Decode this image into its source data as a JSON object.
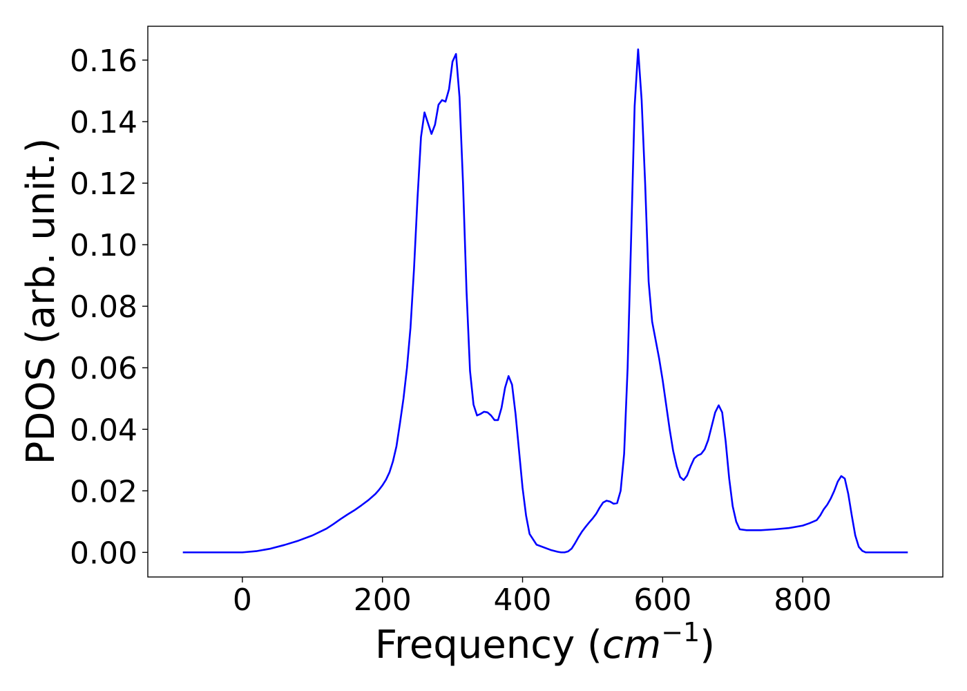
{
  "chart_data": {
    "type": "line",
    "title": "",
    "xlabel": "Frequency (cm⁻¹)",
    "xlabel_prefix": "Frequency (",
    "xlabel_unit": "cm",
    "xlabel_exponent": "−1",
    "xlabel_suffix": ")",
    "ylabel": "PDOS (arb. unit.)",
    "xlim": [
      -135,
      1000
    ],
    "ylim": [
      -0.008,
      0.171
    ],
    "x_ticks": [
      0,
      200,
      400,
      600,
      800
    ],
    "x_tick_labels": [
      "0",
      "200",
      "400",
      "600",
      "800"
    ],
    "y_ticks": [
      0.0,
      0.02,
      0.04,
      0.06,
      0.08,
      0.1,
      0.12,
      0.14,
      0.16
    ],
    "y_tick_labels": [
      "0.00",
      "0.02",
      "0.04",
      "0.06",
      "0.08",
      "0.10",
      "0.12",
      "0.14",
      "0.16"
    ],
    "grid": false,
    "legend": "none",
    "series": [
      {
        "color": "#0000ff",
        "x": [
          -85,
          -40,
          0,
          20,
          40,
          60,
          80,
          100,
          120,
          130,
          140,
          150,
          160,
          170,
          180,
          185,
          190,
          195,
          200,
          205,
          210,
          215,
          220,
          225,
          230,
          235,
          240,
          245,
          250,
          255,
          260,
          265,
          270,
          275,
          280,
          285,
          290,
          295,
          300,
          305,
          310,
          315,
          320,
          325,
          330,
          335,
          340,
          345,
          350,
          355,
          360,
          365,
          370,
          375,
          380,
          385,
          390,
          395,
          400,
          405,
          410,
          420,
          440,
          450,
          455,
          460,
          465,
          470,
          475,
          480,
          485,
          490,
          495,
          500,
          505,
          510,
          515,
          520,
          525,
          530,
          535,
          540,
          545,
          550,
          555,
          560,
          565,
          570,
          575,
          580,
          585,
          590,
          595,
          600,
          605,
          610,
          615,
          620,
          625,
          630,
          635,
          640,
          645,
          650,
          655,
          660,
          665,
          670,
          675,
          680,
          685,
          690,
          695,
          700,
          705,
          710,
          720,
          730,
          740,
          760,
          780,
          800,
          810,
          820,
          825,
          830,
          835,
          840,
          845,
          850,
          855,
          860,
          865,
          870,
          875,
          880,
          885,
          890,
          900,
          950
        ],
        "y": [
          0,
          0,
          0,
          0.0004,
          0.0012,
          0.0024,
          0.0038,
          0.0055,
          0.0077,
          0.0092,
          0.0108,
          0.0123,
          0.0137,
          0.0153,
          0.017,
          0.018,
          0.019,
          0.0203,
          0.0218,
          0.0236,
          0.026,
          0.0296,
          0.0345,
          0.042,
          0.05,
          0.06,
          0.073,
          0.092,
          0.115,
          0.135,
          0.143,
          0.1395,
          0.136,
          0.139,
          0.1455,
          0.147,
          0.1465,
          0.1505,
          0.1595,
          0.162,
          0.148,
          0.12,
          0.085,
          0.059,
          0.048,
          0.0445,
          0.045,
          0.0457,
          0.0455,
          0.0445,
          0.043,
          0.043,
          0.047,
          0.0535,
          0.0573,
          0.0545,
          0.045,
          0.033,
          0.021,
          0.012,
          0.006,
          0.0025,
          0.0008,
          0.0002,
          0,
          0,
          0.0003,
          0.0012,
          0.003,
          0.005,
          0.0068,
          0.0083,
          0.0097,
          0.011,
          0.0125,
          0.0145,
          0.0162,
          0.0168,
          0.0165,
          0.0158,
          0.016,
          0.02,
          0.032,
          0.06,
          0.102,
          0.145,
          0.1635,
          0.147,
          0.12,
          0.088,
          0.075,
          0.069,
          0.063,
          0.056,
          0.048,
          0.04,
          0.033,
          0.028,
          0.0245,
          0.0235,
          0.025,
          0.028,
          0.0305,
          0.0315,
          0.032,
          0.0335,
          0.0365,
          0.041,
          0.0455,
          0.0478,
          0.0455,
          0.036,
          0.024,
          0.015,
          0.01,
          0.0075,
          0.0072,
          0.0072,
          0.0072,
          0.0075,
          0.0079,
          0.0087,
          0.0095,
          0.0105,
          0.012,
          0.014,
          0.0155,
          0.0175,
          0.02,
          0.023,
          0.0248,
          0.024,
          0.019,
          0.012,
          0.0055,
          0.0018,
          0.0005,
          0,
          0,
          0
        ]
      }
    ]
  }
}
